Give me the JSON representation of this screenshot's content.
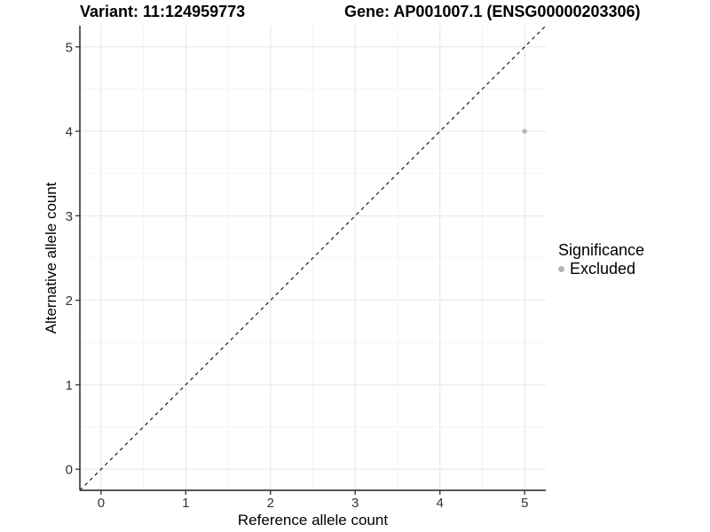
{
  "titles": {
    "variant": "Variant: 11:124959773",
    "gene": "Gene: AP001007.1 (ENSG00000203306)"
  },
  "chart_data": {
    "type": "scatter",
    "title_left": "Variant: 11:124959773",
    "title_right": "Gene: AP001007.1 (ENSG00000203306)",
    "xlabel": "Reference allele count",
    "ylabel": "Alternative allele count",
    "xlim": [
      -0.25,
      5.25
    ],
    "ylim": [
      -0.25,
      5.25
    ],
    "xticks": [
      0,
      1,
      2,
      3,
      4,
      5
    ],
    "yticks": [
      0,
      1,
      2,
      3,
      4,
      5
    ],
    "minor_ticks_x": [
      0.5,
      1.5,
      2.5,
      3.5,
      4.5
    ],
    "minor_ticks_y": [
      0.5,
      1.5,
      2.5,
      3.5,
      4.5
    ],
    "grid": true,
    "series": [
      {
        "name": "Excluded",
        "marker": "circle",
        "color": "#b5b5b5",
        "points": [
          {
            "x": 5,
            "y": 4
          }
        ]
      }
    ],
    "reference_line": {
      "kind": "identity y=x",
      "style": "dashed",
      "from": [
        -0.25,
        -0.25
      ],
      "to": [
        5.25,
        5.25
      ],
      "color": "#1a1a1a"
    },
    "legend": {
      "title": "Significance",
      "position": "right",
      "items": [
        {
          "label": "Excluded",
          "color": "#b5b5b5",
          "marker": "circle"
        }
      ]
    },
    "colors": {
      "background": "#ffffff",
      "grid_major": "#e7e7e7",
      "grid_minor": "#f2f2f2",
      "axis_line": "#3f3f3f",
      "tick_mark": "#333333",
      "tick_label": "#333333",
      "axis_title": "#000000",
      "point": "#b5b5b5"
    }
  }
}
